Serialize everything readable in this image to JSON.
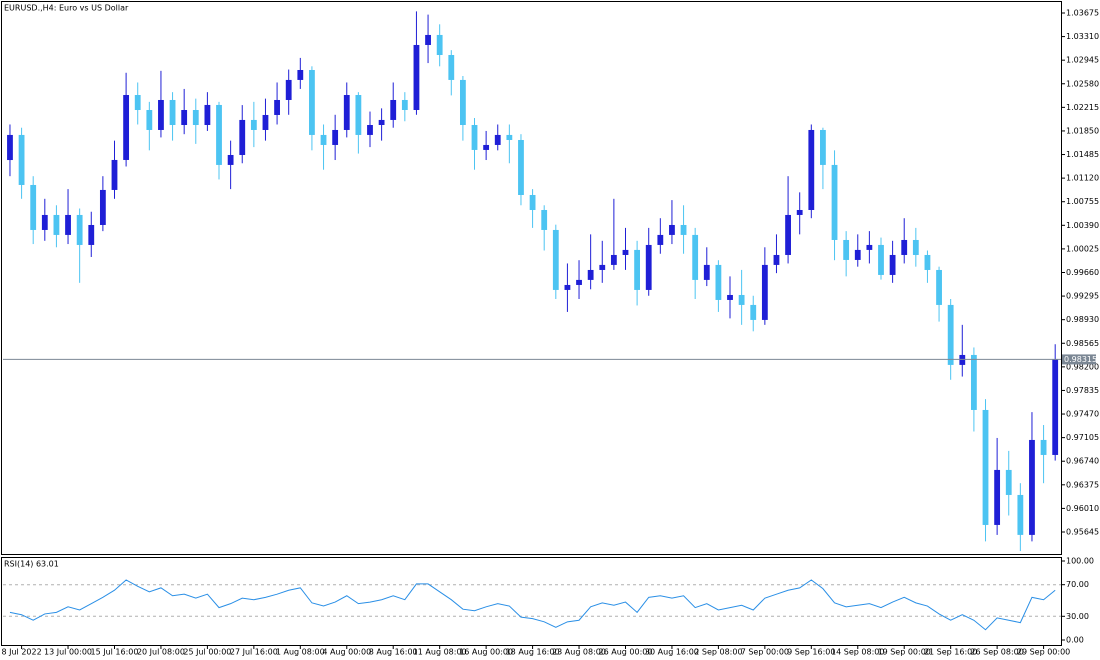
{
  "chart_data": [
    {
      "type": "candlestick",
      "title": "EURUSD.,H4:  Euro vs US Dollar",
      "up_color": "#1f1fd6",
      "down_color": "#4cc4f2",
      "price_line_color": "#7b8794",
      "current_price": 0.98315,
      "xlim": [
        -0.6,
        90.5
      ],
      "xticks": [
        {
          "value": 1,
          "label": "8 Jul 2022"
        },
        {
          "value": 5,
          "label": "13 Jul 00:00"
        },
        {
          "value": 9,
          "label": "15 Jul 16:00"
        },
        {
          "value": 13,
          "label": "20 Jul 08:00"
        },
        {
          "value": 17,
          "label": "25 Jul 00:00"
        },
        {
          "value": 21,
          "label": "27 Jul 16:00"
        },
        {
          "value": 25,
          "label": "1 Aug 08:00"
        },
        {
          "value": 29,
          "label": "4 Aug 00:00"
        },
        {
          "value": 33,
          "label": "8 Aug 16:00"
        },
        {
          "value": 37,
          "label": "11 Aug 08:00"
        },
        {
          "value": 41,
          "label": "16 Aug 00:00"
        },
        {
          "value": 45,
          "label": "18 Aug 16:00"
        },
        {
          "value": 49,
          "label": "23 Aug 08:00"
        },
        {
          "value": 53,
          "label": "26 Aug 00:00"
        },
        {
          "value": 57,
          "label": "30 Aug 16:00"
        },
        {
          "value": 61,
          "label": "2 Sep 08:00"
        },
        {
          "value": 65,
          "label": "7 Sep 00:00"
        },
        {
          "value": 69,
          "label": "9 Sep 16:00"
        },
        {
          "value": 73,
          "label": "14 Sep 08:00"
        },
        {
          "value": 77,
          "label": "19 Sep 00:00"
        },
        {
          "value": 81,
          "label": "21 Sep 16:00"
        },
        {
          "value": 85,
          "label": "26 Sep 08:00"
        },
        {
          "value": 89,
          "label": "29 Sep 00:00"
        }
      ],
      "ylim": [
        0.9532,
        1.03845
      ],
      "yticks": [
        1.03675,
        {
          "value": 1.0331,
          "label": "1.03310"
        },
        1.02945,
        {
          "value": 1.0258,
          "label": "1.02580"
        },
        1.02215,
        {
          "value": 1.0185,
          "label": "1.01850"
        },
        1.01485,
        {
          "value": 1.0112,
          "label": "1.01120"
        },
        1.00755,
        {
          "value": 1.0039,
          "label": "1.00390"
        },
        1.00025,
        {
          "value": 0.9966,
          "label": "0.99660"
        },
        0.99295,
        {
          "value": 0.9893,
          "label": "0.98930"
        },
        0.98565,
        {
          "value": 0.982,
          "label": "0.98200"
        },
        0.97835,
        {
          "value": 0.9747,
          "label": "0.97470"
        },
        0.97105,
        {
          "value": 0.9674,
          "label": "0.96740"
        },
        0.96375,
        {
          "value": 0.9601,
          "label": "0.96010"
        },
        0.95645
      ],
      "open": [
        1.014,
        1.01788,
        1.01014,
        1.00318,
        1.0055,
        1.00241,
        1.0055,
        1.00086,
        1.00395,
        1.00937,
        1.01401,
        1.02406,
        1.02174,
        1.01865,
        1.02329,
        1.01942,
        1.02174,
        1.01942,
        1.02252,
        1.01324,
        1.01478,
        1.0202,
        1.01865,
        1.02097,
        1.02329,
        1.02639,
        1.02793,
        1.01788,
        1.01633,
        1.01865,
        1.02406,
        1.01788,
        1.01942,
        1.0202,
        1.02329,
        1.02174,
        1.0318,
        1.03335,
        1.03025,
        1.02639,
        1.01942,
        1.01556,
        1.01633,
        1.01788,
        1.0171,
        1.00859,
        1.00627,
        1.00318,
        0.9939,
        0.99467,
        0.99545,
        0.99699,
        0.99777,
        0.99931,
        1.00009,
        0.9939,
        1.00086,
        1.00241,
        1.00395,
        1.00241,
        0.99545,
        0.99777,
        0.99235,
        0.99312,
        0.99158,
        0.98926,
        0.99777,
        0.99931,
        1.0055,
        1.00627,
        1.01865,
        1.01324,
        1.00163,
        0.99854,
        1.00009,
        1.00086,
        0.99622,
        0.99931,
        1.00163,
        0.99931,
        0.99699,
        0.99158,
        0.9823,
        0.98384,
        0.97533,
        0.95754,
        0.96605,
        0.96218,
        0.956,
        0.97069,
        0.96837
      ],
      "high": [
        1.0195,
        1.019,
        1.0115,
        1.008,
        1.007,
        1.0095,
        1.0065,
        1.006,
        1.0115,
        1.017,
        1.0275,
        1.026,
        1.023,
        1.0278,
        1.0245,
        1.025,
        1.0235,
        1.0245,
        1.023,
        1.017,
        1.0225,
        1.023,
        1.0235,
        1.026,
        1.028,
        1.0298,
        1.0285,
        1.0195,
        1.021,
        1.026,
        1.0245,
        1.0215,
        1.022,
        1.026,
        1.0245,
        1.037,
        1.0365,
        1.035,
        1.031,
        1.027,
        1.0205,
        1.0185,
        1.0195,
        1.0195,
        1.018,
        1.0095,
        1.007,
        1.004,
        0.998,
        0.9985,
        1.0025,
        1.0015,
        1.008,
        1.0035,
        1.0015,
        1.0035,
        1.005,
        1.0078,
        1.007,
        1.0035,
        1.0005,
        0.9985,
        0.996,
        0.997,
        0.993,
        1.0005,
        1.0025,
        1.0115,
        1.009,
        1.0195,
        1.019,
        1.0155,
        1.003,
        1.0025,
        1.003,
        1.002,
        1.0015,
        1.005,
        1.0035,
        1.0,
        0.9975,
        0.9925,
        0.9885,
        0.985,
        0.977,
        0.971,
        0.969,
        0.964,
        0.975,
        0.973,
        0.9855
      ],
      "low": [
        1.0115,
        1.008,
        1.001,
        1.0015,
        1.0005,
        1.001,
        0.995,
        0.999,
        1.003,
        1.008,
        1.013,
        1.0195,
        1.0155,
        1.0175,
        1.017,
        1.018,
        1.0165,
        1.0185,
        1.011,
        1.0095,
        1.0135,
        1.016,
        1.017,
        1.0195,
        1.021,
        1.025,
        1.0155,
        1.0125,
        1.014,
        1.0175,
        1.015,
        1.016,
        1.017,
        1.019,
        1.02,
        1.021,
        1.029,
        1.0285,
        1.024,
        1.017,
        1.0125,
        1.014,
        1.0155,
        1.0135,
        1.007,
        1.0035,
        1.0,
        0.9925,
        0.9905,
        0.9925,
        0.994,
        0.995,
        0.997,
        0.997,
        0.9915,
        0.993,
        0.9995,
        1.001,
        0.9995,
        0.9925,
        0.9945,
        0.9905,
        0.9895,
        0.9885,
        0.9875,
        0.9885,
        0.9965,
        0.998,
        1.0025,
        1.005,
        1.0095,
        0.9985,
        0.996,
        0.9975,
        0.998,
        0.9955,
        0.995,
        0.998,
        0.9975,
        0.995,
        0.989,
        0.98,
        0.9805,
        0.972,
        0.955,
        0.956,
        0.959,
        0.9535,
        0.955,
        0.964,
        0.9675
      ],
      "close": [
        1.01788,
        1.01014,
        1.00318,
        1.0055,
        1.00241,
        1.0055,
        1.00086,
        1.00395,
        1.00937,
        1.01401,
        1.02406,
        1.02174,
        1.01865,
        1.02329,
        1.01942,
        1.02174,
        1.01942,
        1.02252,
        1.01324,
        1.01478,
        1.0202,
        1.01865,
        1.02097,
        1.02329,
        1.02639,
        1.02793,
        1.01788,
        1.01633,
        1.01865,
        1.02406,
        1.01788,
        1.01942,
        1.0202,
        1.02329,
        1.02174,
        1.0318,
        1.03335,
        1.03025,
        1.02639,
        1.01942,
        1.01556,
        1.01633,
        1.01788,
        1.0171,
        1.00859,
        1.00627,
        1.00318,
        0.9939,
        0.99467,
        0.99545,
        0.99699,
        0.99777,
        0.99931,
        1.00009,
        0.9939,
        1.00086,
        1.00241,
        1.00395,
        1.00241,
        0.99545,
        0.99777,
        0.99235,
        0.99312,
        0.99158,
        0.98926,
        0.99777,
        0.99931,
        1.0055,
        1.00627,
        1.01865,
        1.01324,
        1.00163,
        0.99854,
        1.00009,
        1.00086,
        0.99622,
        0.99931,
        1.00163,
        0.99931,
        0.99699,
        0.99158,
        0.9823,
        0.98384,
        0.97533,
        0.95754,
        0.96605,
        0.96218,
        0.956,
        0.97069,
        0.96837,
        0.98315
      ]
    },
    {
      "type": "line",
      "title": "RSI(14) 63.01",
      "color": "#2a8fe6",
      "xlim": [
        -0.6,
        90.5
      ],
      "ylim": [
        0,
        100
      ],
      "yticks": [
        {
          "value": 100,
          "label": "100.00"
        },
        {
          "value": 70,
          "label": "70.00"
        },
        {
          "value": 30,
          "label": "30.00"
        },
        {
          "value": 0,
          "label": "0.00"
        }
      ],
      "values": [
        35,
        32,
        25,
        33,
        35,
        42,
        38,
        46,
        54,
        63,
        76,
        68,
        61,
        66,
        56,
        58,
        53,
        58,
        41,
        46,
        53,
        51,
        54,
        58,
        63,
        66,
        47,
        43,
        48,
        56,
        46,
        48,
        51,
        56,
        51,
        71,
        71,
        61,
        51,
        39,
        37,
        42,
        46,
        43,
        29,
        27,
        23,
        16,
        23,
        25,
        42,
        47,
        44,
        48,
        35,
        54,
        56,
        53,
        56,
        41,
        46,
        38,
        41,
        44,
        38,
        53,
        58,
        63,
        66,
        76,
        65,
        47,
        42,
        44,
        46,
        41,
        48,
        54,
        47,
        43,
        33,
        25,
        32,
        25,
        13,
        28,
        25,
        22,
        54,
        51,
        63.01
      ]
    }
  ]
}
